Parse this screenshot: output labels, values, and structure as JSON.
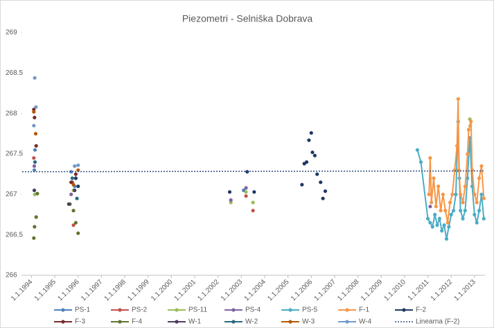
{
  "chart_data": {
    "type": "scatter",
    "title": "Piezometri - Selniška Dobrava",
    "xlim": [
      1993.6,
      2013.45
    ],
    "xticks": [
      {
        "value": 1994,
        "label": "1.1.1994"
      },
      {
        "value": 1995,
        "label": "1.1.1995"
      },
      {
        "value": 1996,
        "label": "1.1.1996"
      },
      {
        "value": 1997,
        "label": "1.1.1997"
      },
      {
        "value": 1998,
        "label": "1.1.1998"
      },
      {
        "value": 1999,
        "label": "1.1.1999"
      },
      {
        "value": 2000,
        "label": "1.1.2000"
      },
      {
        "value": 2001,
        "label": "1.1.2001"
      },
      {
        "value": 2002,
        "label": "1.1.2002"
      },
      {
        "value": 2003,
        "label": "1.1.2003"
      },
      {
        "value": 2004,
        "label": "1.1.2004"
      },
      {
        "value": 2005,
        "label": "1.1.2005"
      },
      {
        "value": 2006,
        "label": "1.1.2006"
      },
      {
        "value": 2007,
        "label": "1.1.2007"
      },
      {
        "value": 2008,
        "label": "1.1.2008"
      },
      {
        "value": 2009,
        "label": "1.1.2009"
      },
      {
        "value": 2010,
        "label": "1.1.2010"
      },
      {
        "value": 2011,
        "label": "1.1.2011"
      },
      {
        "value": 2012,
        "label": "1.1.2012"
      },
      {
        "value": 2013,
        "label": "1.1.2013"
      }
    ],
    "ylim": [
      266,
      269
    ],
    "yticks": [
      266,
      266.5,
      267,
      267.5,
      268,
      268.5,
      269
    ],
    "series": [
      {
        "name": "PS-1",
        "color": "#4f81bd",
        "x": [
          1994.12,
          1994.15,
          1995.7,
          1995.85,
          2003.1
        ],
        "values": [
          267.3,
          267.55,
          267.28,
          267.1,
          267.05
        ]
      },
      {
        "name": "PS-2",
        "color": "#c0504d",
        "x": [
          1994.1,
          1995.75,
          1995.8,
          2003.2,
          2003.5
        ],
        "values": [
          267.45,
          267.15,
          266.62,
          266.98,
          266.8
        ]
      },
      {
        "name": "PS-11",
        "color": "#9bbb59",
        "x": [
          1994.14,
          1995.8,
          2002.55,
          2003.2,
          2003.5,
          2012.8,
          2012.82
        ],
        "values": [
          267.0,
          267.05,
          266.9,
          267.03,
          266.9,
          267.93,
          267.85
        ]
      },
      {
        "name": "PS-4",
        "color": "#8064a2",
        "x": [
          1994.12,
          1995.7,
          2002.55,
          2003.2,
          2011.05,
          2011.1
        ],
        "values": [
          267.35,
          267.0,
          266.93,
          267.08,
          267.0,
          266.85
        ]
      },
      {
        "name": "PS-5",
        "color": "#4bacc6",
        "line": true,
        "x": [
          2010.55,
          2010.7,
          2011.0,
          2011.1,
          2011.2,
          2011.3,
          2011.4,
          2011.5,
          2011.6,
          2011.7,
          2011.8,
          2011.9,
          2012.0,
          2012.1,
          2012.2,
          2012.3,
          2012.35,
          2012.4,
          2012.5,
          2012.6,
          2012.7,
          2012.8,
          2012.9,
          2013.0,
          2013.1,
          2013.2,
          2013.3,
          2013.4
        ],
        "values": [
          267.55,
          267.4,
          266.7,
          266.65,
          266.6,
          266.75,
          266.62,
          266.7,
          266.55,
          266.62,
          266.45,
          266.6,
          266.75,
          266.8,
          267.0,
          267.9,
          267.2,
          266.8,
          266.7,
          266.8,
          267.2,
          267.7,
          267.1,
          266.75,
          266.65,
          266.8,
          267.0,
          266.7
        ]
      },
      {
        "name": "F-1",
        "color": "#f79646",
        "line": true,
        "x": [
          2011.05,
          2011.1,
          2011.15,
          2011.25,
          2011.35,
          2011.45,
          2011.55,
          2011.65,
          2011.75,
          2011.85,
          2011.95,
          2012.05,
          2012.15,
          2012.25,
          2012.3,
          2012.33,
          2012.4,
          2012.5,
          2012.6,
          2012.7,
          2012.75,
          2012.85,
          2012.9,
          2013.0,
          2013.1,
          2013.2,
          2013.3,
          2013.4
        ],
        "values": [
          267.0,
          267.45,
          266.9,
          267.2,
          266.85,
          267.1,
          266.8,
          267.0,
          266.8,
          266.65,
          266.9,
          267.0,
          267.3,
          267.6,
          268.18,
          267.3,
          267.0,
          266.9,
          267.1,
          267.5,
          267.8,
          267.9,
          267.3,
          267.0,
          266.9,
          267.2,
          267.35,
          266.95
        ]
      },
      {
        "name": "F-2",
        "color": "#1f3864",
        "x": [
          1995.9,
          1996.0,
          2002.5,
          2003.25,
          2003.55,
          2005.6,
          2005.7,
          2005.8,
          2005.9,
          2006.0,
          2006.05,
          2006.15,
          2006.25,
          2006.4,
          2006.5,
          2006.6
        ],
        "values": [
          267.2,
          267.1,
          267.03,
          267.28,
          267.03,
          267.12,
          267.38,
          267.4,
          267.67,
          267.76,
          267.52,
          267.48,
          267.25,
          267.15,
          266.95,
          267.04
        ]
      },
      {
        "name": "F-3",
        "color": "#772c2a",
        "x": [
          1994.1,
          1994.13,
          1994.2,
          1995.7,
          1995.9
        ],
        "values": [
          268.05,
          267.95,
          267.6,
          267.15,
          267.25
        ]
      },
      {
        "name": "F-4",
        "color": "#5f7530",
        "x": [
          1994.1,
          1994.13,
          1994.2,
          1994.25,
          1995.65,
          1995.8,
          1995.9,
          1996.0
        ],
        "values": [
          266.46,
          266.6,
          266.72,
          267.01,
          266.88,
          266.8,
          266.65,
          266.52
        ]
      },
      {
        "name": "W-1",
        "color": "#4d3b62",
        "x": [
          1994.12,
          1995.6,
          1995.85
        ],
        "values": [
          267.05,
          266.88,
          267.05
        ]
      },
      {
        "name": "W-2",
        "color": "#276a7c",
        "x": [
          1994.15,
          1995.75,
          1995.95
        ],
        "values": [
          267.4,
          267.2,
          266.95
        ]
      },
      {
        "name": "W-3",
        "color": "#b65708",
        "x": [
          1994.1,
          1994.18,
          1995.8,
          1996.0
        ],
        "values": [
          268.02,
          267.75,
          267.12,
          267.3
        ]
      },
      {
        "name": "W-4",
        "color": "#729aca",
        "x": [
          1994.14,
          1994.19,
          1994.1,
          1995.85,
          1996.0
        ],
        "values": [
          268.44,
          268.08,
          267.85,
          267.35,
          267.36
        ]
      },
      {
        "name": "Linearna (F-2)",
        "color": "#2e4d7b",
        "trend": true,
        "x": [
          1993.6,
          2013.45
        ],
        "values": [
          267.28,
          267.29
        ]
      }
    ]
  }
}
